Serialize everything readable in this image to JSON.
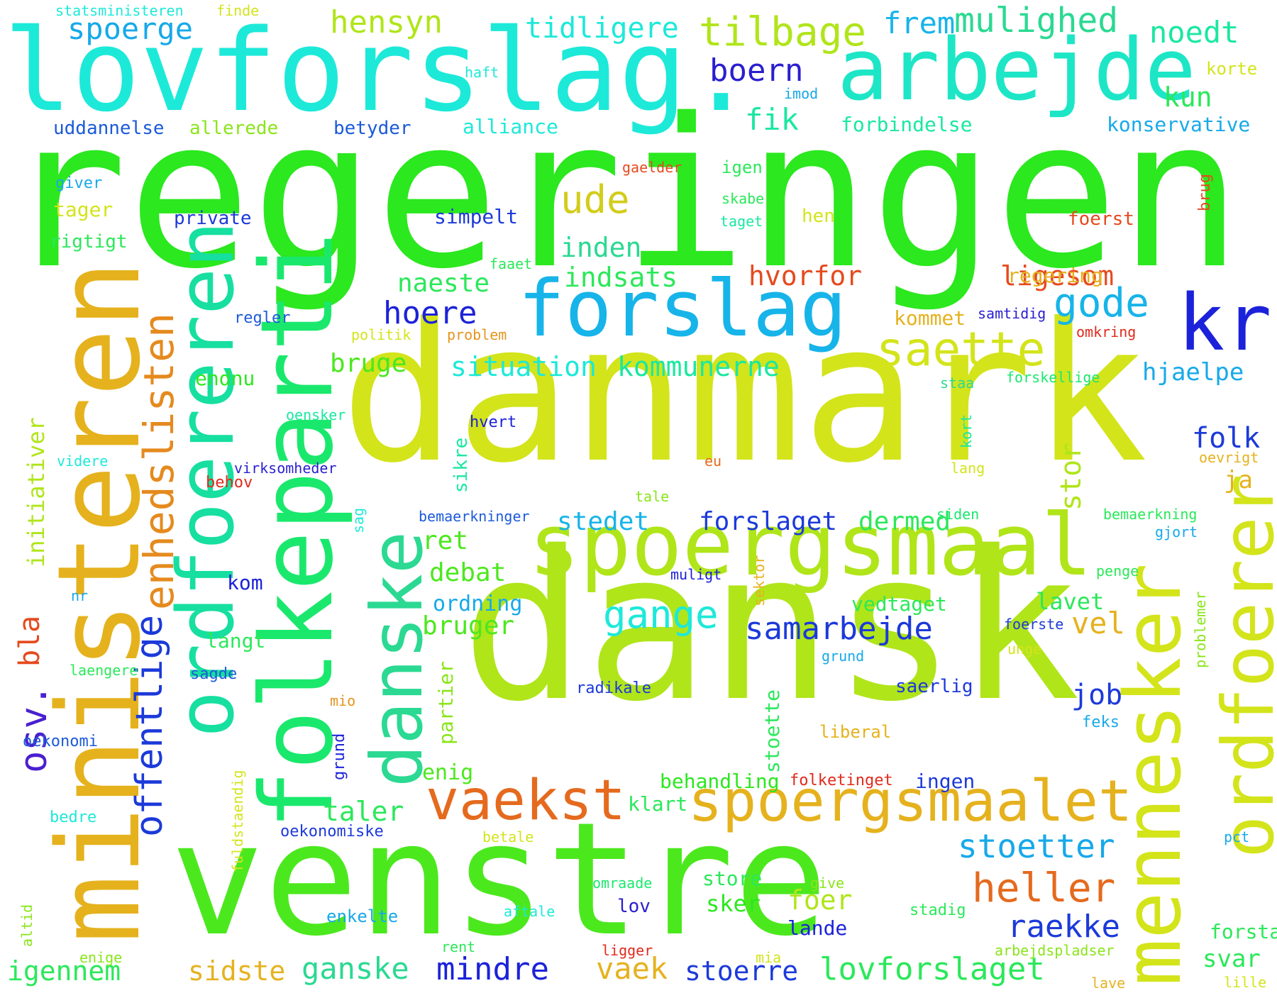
{
  "words": [
    "regeringen",
    "danmark",
    "dansk",
    "venstre",
    "lovforslag.",
    "arbejde",
    "ministeren",
    "folkeparti",
    "forslag",
    "kr",
    "spoergsmaal",
    "ordfoereren",
    "mennesker",
    "ordfoerer",
    "danske",
    "spoergsmaalet",
    "vaekst",
    "enhedslisten",
    "tilbage",
    "saette",
    "gode",
    "heller",
    "stoetter",
    "raekke",
    "samarbejde",
    "gange",
    "ude",
    "hoere",
    "offentlige",
    "osv.",
    "lovforslaget",
    "mindre",
    "ganske",
    "sidste",
    "vaek",
    "stoerre",
    "igennem",
    "foer",
    "mulighed",
    "noedt",
    "hensyn",
    "spoerge",
    "tidligere",
    "frem",
    "boern",
    "fik",
    "kun",
    "korte",
    "konservative",
    "alliance",
    "forbindelse",
    "uddannelse",
    "allerede",
    "betyder",
    "haft",
    "imod",
    "statsministeren",
    "finde",
    "inden",
    "indsats",
    "hvorfor",
    "ligesom",
    "naeste",
    "regering",
    "kommet",
    "situation",
    "kommunerne",
    "bruge",
    "hjaelpe",
    "folk",
    "ja",
    "stor",
    "forslaget",
    "stedet",
    "dermed",
    "ret",
    "debat",
    "ordning",
    "bruger",
    "vedtaget",
    "lavet",
    "vel",
    "job",
    "initiativer",
    "bla",
    "endnu",
    "taler",
    "enig",
    "behandling",
    "ingen",
    "klart",
    "store",
    "sker",
    "lande",
    "svar",
    "forstaa",
    "lov",
    "give",
    "omraade",
    "stadig",
    "aftale",
    "enkelte",
    "rent",
    "ligger",
    "mia",
    "arbejdspladser",
    "lave",
    "lille",
    "enige",
    "altid",
    "fuldstaendig",
    "betale",
    "pct",
    "bedre",
    "oekonomiske",
    "oekonomi",
    "laengere",
    "langt",
    "sagde",
    "radikale",
    "saerlig",
    "feks",
    "liberal",
    "mio",
    "grund",
    "stoette",
    "partier",
    "folketinget",
    "unge",
    "foerste",
    "problemer",
    "penge",
    "bemaerkning",
    "gjort",
    "siden",
    "bemaerkninger",
    "muligt",
    "sektor",
    "kom",
    "nr",
    "virksomheder",
    "behov",
    "videre",
    "oensker",
    "sikre",
    "hvert",
    "kort",
    "lang",
    "eu",
    "oevrigt",
    "tale",
    "sag",
    "politik",
    "problem",
    "regler",
    "samtidig",
    "omkring",
    "staa",
    "forskellige",
    "faaet",
    "private",
    "simpelt",
    "tager",
    "rigtigt",
    "giver",
    "gaelder",
    "igen",
    "skabe",
    "taget",
    "hen",
    "foerst",
    "brug"
  ],
  "colors": {
    "green": "#2be81f",
    "lime": "#b0e51a",
    "yellow_green": "#d3e41b",
    "cyan": "#1de9d9",
    "teal": "#16dfb7",
    "blue": "#1c22d9",
    "sky": "#17a9e9",
    "orange": "#e56a1e",
    "amber": "#e5b21e",
    "red": "#e02a1c",
    "spring": "#1ae86d",
    "navy": "#2a1fd0"
  }
}
